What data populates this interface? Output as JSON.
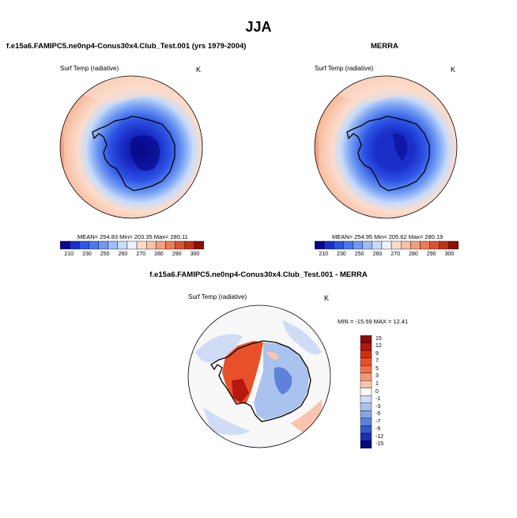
{
  "title": "JJA",
  "panels": [
    {
      "title": "f.e15a6.FAMIPC5.ne0np4-Conus30x4.Club_Test.001 (yrs 1979-2004)",
      "variable": "Surf Temp (radiative)",
      "units": "K",
      "stats": "MEAN= 254.83   Min= 203.35   Max= 280.11",
      "colorbar_ticks": [
        "210",
        "230",
        "250",
        "260",
        "270",
        "280",
        "290",
        "300"
      ]
    },
    {
      "title": "MERRA",
      "variable": "Surf Temp (radiative)",
      "units": "K",
      "stats": "MEAN= 254.95   Min= 205.62   Max= 280.19",
      "colorbar_ticks": [
        "210",
        "230",
        "250",
        "260",
        "270",
        "280",
        "290",
        "300"
      ]
    },
    {
      "title": "f.e15a6.FAMIPC5.ne0np4-Conus30x4.Club_Test.001 - MERRA",
      "variable": "Surf Temp (radiative)",
      "units": "K",
      "stats": "MIN = -15.59 MAX =  12.41",
      "colorbar_ticks": [
        "15",
        "12",
        "9",
        "7",
        "5",
        "3",
        "1",
        "0",
        "-1",
        "-3",
        "-5",
        "-7",
        "-9",
        "-12",
        "-15"
      ]
    }
  ],
  "colors": {
    "abs_scale": [
      "#08088a",
      "#1a2fc8",
      "#2d55e6",
      "#4a78ee",
      "#6f9af2",
      "#9ebdf6",
      "#c8dcfa",
      "#eef3fc",
      "#fbdccb",
      "#f8c0a5",
      "#f4a080",
      "#ec7a58",
      "#dc5234",
      "#c03018",
      "#8a1008"
    ],
    "diff_scale": [
      "#8a0a0a",
      "#b41810",
      "#d43010",
      "#e8502a",
      "#f07048",
      "#f49878",
      "#fac4b0",
      "#f8f8f8",
      "#cfdcf5",
      "#aac2ee",
      "#86a6e6",
      "#5e82dc",
      "#3558cc",
      "#1a2fb4",
      "#0a0a7a"
    ]
  }
}
